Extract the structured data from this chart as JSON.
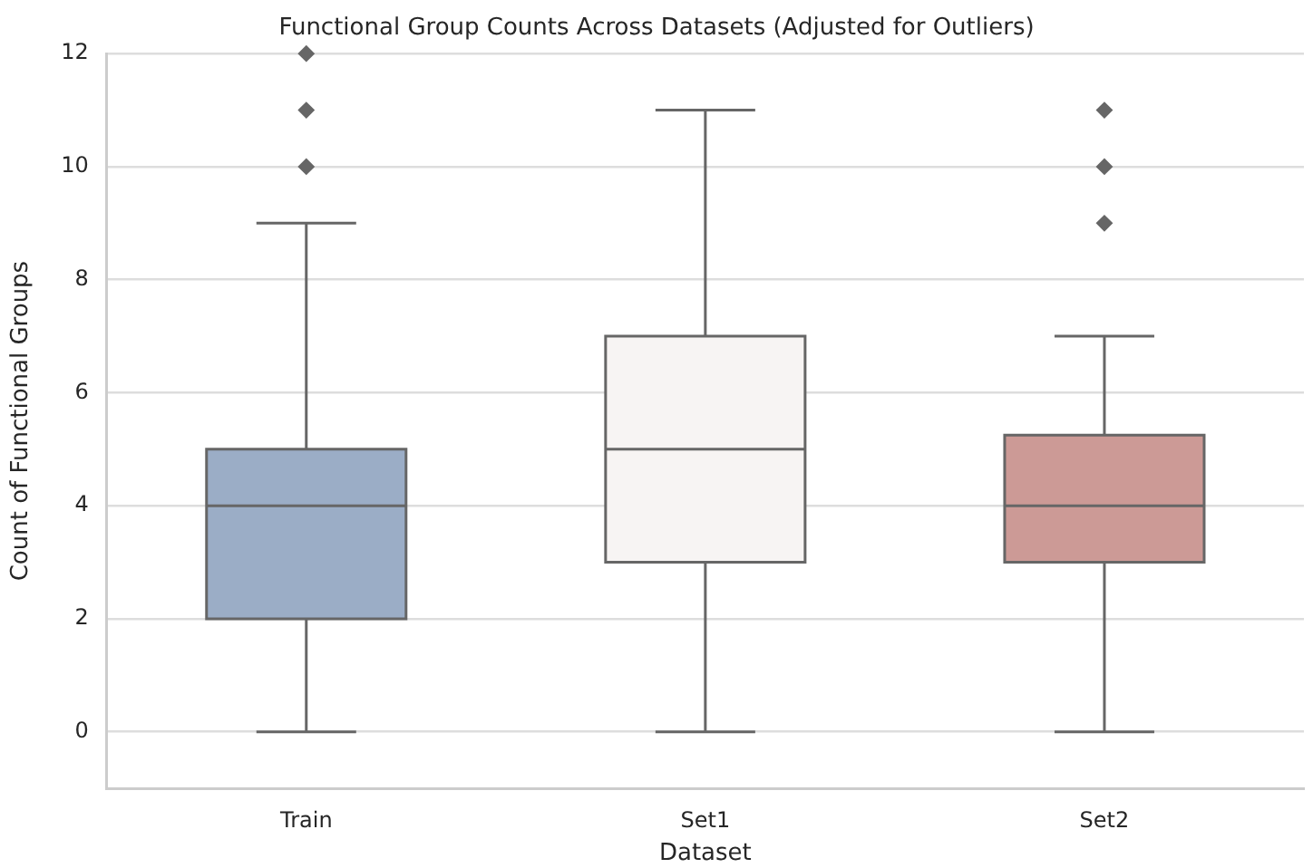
{
  "chart_data": {
    "type": "box",
    "title": "Functional Group Counts Across Datasets (Adjusted for Outliers)",
    "xlabel": "Dataset",
    "ylabel": "Count of Functional Groups",
    "categories": [
      "Train",
      "Set1",
      "Set2"
    ],
    "boxes": [
      {
        "low": 0,
        "q1": 2,
        "median": 4,
        "q3": 5,
        "high": 9,
        "outliers": [
          10,
          11,
          12
        ]
      },
      {
        "low": 0,
        "q1": 3,
        "median": 5,
        "q3": 7,
        "high": 11
      },
      {
        "low": 0,
        "q1": 3,
        "median": 4,
        "q3": 5.25,
        "high": 7,
        "outliers": [
          9,
          10,
          11
        ]
      }
    ],
    "colors": [
      "#9badc6",
      "#f7f4f3",
      "#cc9a96"
    ],
    "ylim": [
      -1,
      12
    ],
    "yticks": [
      0,
      2,
      4,
      6,
      8,
      10,
      12
    ],
    "grid": "y",
    "marker": "diamond"
  }
}
